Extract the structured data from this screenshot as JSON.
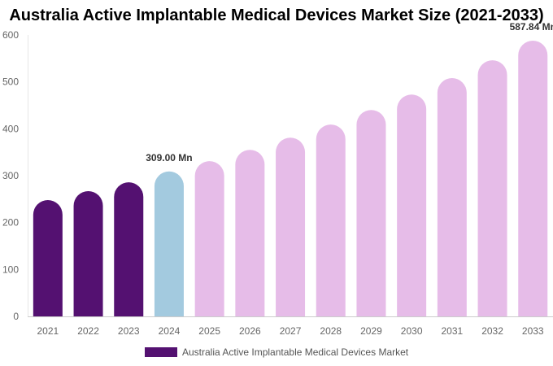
{
  "chart_data": {
    "type": "bar",
    "title": "Australia Active Implantable Medical Devices Market Size (2021-2033)",
    "categories": [
      "2021",
      "2022",
      "2023",
      "2024",
      "2025",
      "2026",
      "2027",
      "2028",
      "2029",
      "2030",
      "2031",
      "2032",
      "2033"
    ],
    "series": [
      {
        "name": "Australia Active Implantable Medical Devices Market",
        "values": [
          248,
          267,
          286,
          309.0,
          331,
          355,
          381,
          409,
          440,
          473,
          508,
          546,
          587.84
        ]
      }
    ],
    "data_labels": [
      {
        "category": "2024",
        "text": "309.00 Mn"
      },
      {
        "category": "2033",
        "text": "587.84 Mn"
      }
    ],
    "ylim": [
      0,
      600
    ],
    "yticks": [
      0,
      100,
      200,
      300,
      400,
      500,
      600
    ],
    "xlabel": "",
    "ylabel": "",
    "grid": false,
    "legend": "bottom",
    "colors": {
      "historical": "#541171",
      "current": "#a3cadf",
      "forecast": "#e6bce8"
    }
  }
}
